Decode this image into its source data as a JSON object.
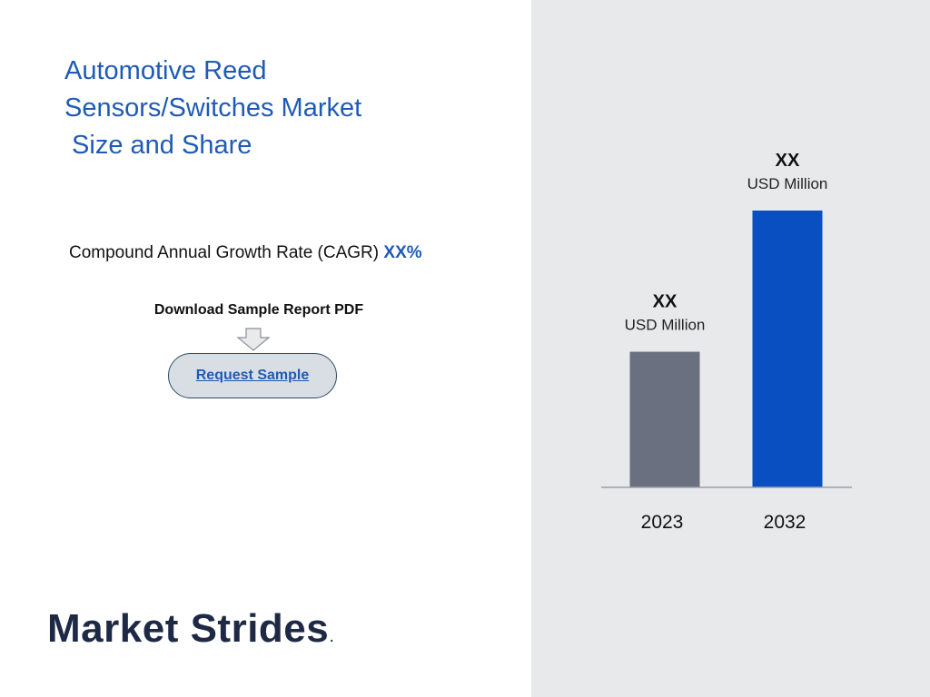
{
  "title_lines": [
    "Automotive Reed",
    "Sensors/Switches Market",
    " Size and Share"
  ],
  "cagr": {
    "label": "Compound Annual Growth Rate (CAGR) ",
    "value": "XX%"
  },
  "download_label": "Download Sample Report PDF",
  "request_button": "Request Sample",
  "logo": {
    "name": "Market Strides",
    "dot": "."
  },
  "colors": {
    "accent": "#1f5bb5",
    "bar_2023": "#6a7080",
    "bar_2032": "#0a4fc2",
    "panel": "#e8e9eb",
    "logo": "#1e2a45"
  },
  "chart_data": {
    "type": "bar",
    "categories": [
      "2023",
      "2032"
    ],
    "values": [
      0.49,
      1.0
    ],
    "value_labels": [
      "XX",
      "XX"
    ],
    "unit_labels": [
      "USD Million",
      "USD Million"
    ],
    "colors": [
      "#6a7080",
      "#0a4fc2"
    ],
    "title": "",
    "xlabel": "",
    "ylabel": "",
    "ylim": [
      0,
      1.0
    ],
    "grid": false
  }
}
